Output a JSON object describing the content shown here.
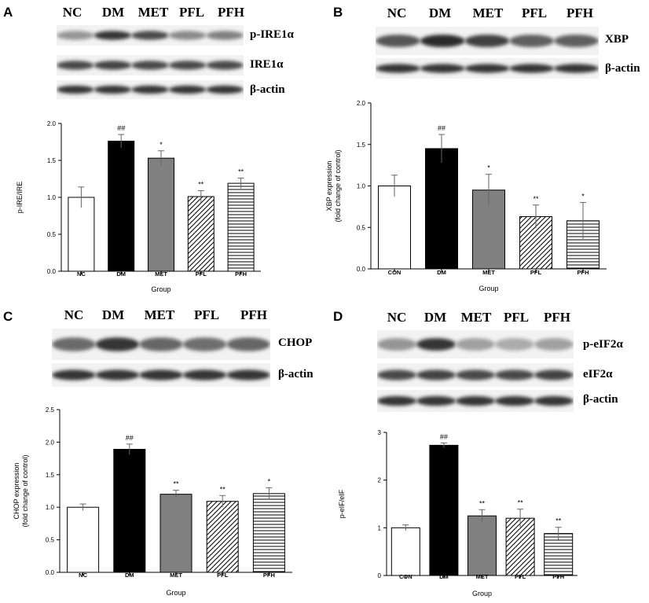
{
  "panels": [
    {
      "letter": "A",
      "lanes": [
        "NC",
        "DM",
        "MET",
        "PFL",
        "PFH"
      ],
      "blots": [
        {
          "label": "p-IRE1α",
          "intensity": [
            0.4,
            0.85,
            0.75,
            0.45,
            0.5
          ]
        },
        {
          "label": "IRE1α",
          "intensity": [
            0.75,
            0.78,
            0.76,
            0.75,
            0.76
          ]
        },
        {
          "label": "β-actin",
          "intensity": [
            0.85,
            0.85,
            0.85,
            0.85,
            0.85
          ]
        }
      ]
    },
    {
      "letter": "B",
      "lanes": [
        "NC",
        "DM",
        "MET",
        "PFL",
        "PFH"
      ],
      "blots": [
        {
          "label": "XBP",
          "intensity": [
            0.7,
            0.9,
            0.8,
            0.65,
            0.65
          ]
        },
        {
          "label": "β-actin",
          "intensity": [
            0.85,
            0.85,
            0.85,
            0.85,
            0.85
          ]
        }
      ]
    },
    {
      "letter": "C",
      "lanes": [
        "NC",
        "DM",
        "MET",
        "PFL",
        "PFH"
      ],
      "blots": [
        {
          "label": "CHOP",
          "intensity": [
            0.6,
            0.85,
            0.62,
            0.58,
            0.62
          ]
        },
        {
          "label": "β-actin",
          "intensity": [
            0.85,
            0.85,
            0.85,
            0.85,
            0.85
          ]
        }
      ]
    },
    {
      "letter": "D",
      "lanes": [
        "NC",
        "DM",
        "MET",
        "PFL",
        "PFH"
      ],
      "blots": [
        {
          "label": "p-eIF2α",
          "intensity": [
            0.4,
            0.85,
            0.35,
            0.3,
            0.35
          ]
        },
        {
          "label": "eIF2α",
          "intensity": [
            0.75,
            0.78,
            0.76,
            0.76,
            0.78
          ]
        },
        {
          "label": "β-actin",
          "intensity": [
            0.85,
            0.85,
            0.85,
            0.85,
            0.85
          ]
        }
      ]
    }
  ],
  "chart_data": [
    {
      "type": "bar",
      "categories": [
        "NC",
        "DM",
        "MET",
        "PFL",
        "PFH"
      ],
      "values": [
        1.0,
        1.76,
        1.53,
        1.01,
        1.19
      ],
      "errors": [
        0.14,
        0.09,
        0.1,
        0.08,
        0.07
      ],
      "annotations": [
        "",
        "##",
        "*",
        "**",
        "**"
      ],
      "fills": [
        "white",
        "black",
        "gray",
        "diag",
        "horiz"
      ],
      "xlabel": "Group",
      "ylabel": "p-IRE/IRE",
      "ylim": [
        0.0,
        2.0
      ],
      "yticks": [
        "0.0",
        "0.5",
        "1.0",
        "1.5",
        "2.0"
      ],
      "grid": false
    },
    {
      "type": "bar",
      "categories": [
        "CON",
        "DM",
        "MET",
        "PFL",
        "PFH"
      ],
      "values": [
        1.0,
        1.45,
        0.95,
        0.63,
        0.58
      ],
      "errors": [
        0.13,
        0.17,
        0.19,
        0.14,
        0.22
      ],
      "annotations": [
        "",
        "##",
        "*",
        "**",
        "*"
      ],
      "fills": [
        "white",
        "black",
        "gray",
        "diag",
        "horiz"
      ],
      "xlabel": "Group",
      "ylabel": "XBP expression",
      "ylabel2": "(fold change of control)",
      "ylim": [
        0.0,
        2.0
      ],
      "yticks": [
        "0.0",
        "0.5",
        "1.0",
        "1.5",
        "2.0"
      ],
      "grid": false
    },
    {
      "type": "bar",
      "categories": [
        "NC",
        "DM",
        "MET",
        "PFL",
        "PFH"
      ],
      "values": [
        1.0,
        1.89,
        1.2,
        1.09,
        1.21
      ],
      "errors": [
        0.05,
        0.08,
        0.06,
        0.09,
        0.09
      ],
      "annotations": [
        "",
        "##",
        "**",
        "**",
        "*"
      ],
      "fills": [
        "white",
        "black",
        "gray",
        "diag",
        "horiz"
      ],
      "xlabel": "Group",
      "ylabel": "CHOP expression",
      "ylabel2": "(fold change of control)",
      "ylim": [
        0.0,
        2.5
      ],
      "yticks": [
        "0.0",
        "0.5",
        "1.0",
        "1.5",
        "2.0",
        "2.5"
      ],
      "grid": false
    },
    {
      "type": "bar",
      "categories": [
        "CON",
        "DM",
        "MET",
        "PFL",
        "PFH"
      ],
      "values": [
        1.0,
        2.73,
        1.25,
        1.2,
        0.88
      ],
      "errors": [
        0.06,
        0.05,
        0.13,
        0.19,
        0.13
      ],
      "annotations": [
        "",
        "##",
        "**",
        "**",
        "**"
      ],
      "fills": [
        "white",
        "black",
        "gray",
        "diag",
        "horiz"
      ],
      "xlabel": "Group",
      "ylabel": "p-eIF/eIF",
      "ylim": [
        0,
        3
      ],
      "yticks": [
        "0",
        "1",
        "2",
        "3"
      ],
      "grid": false
    }
  ]
}
